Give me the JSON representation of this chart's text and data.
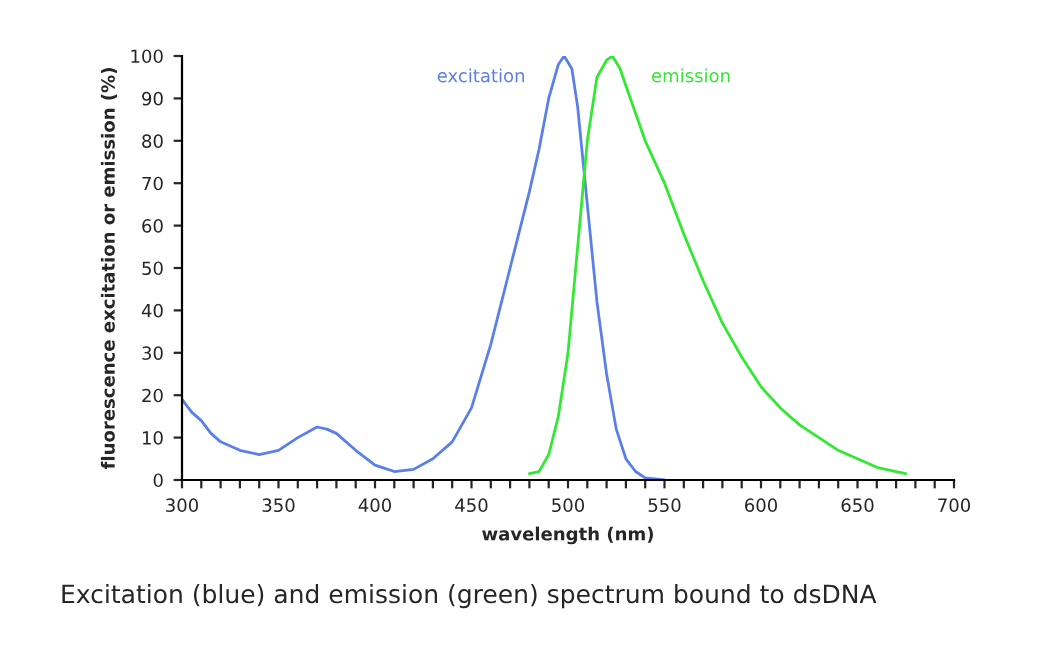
{
  "chart_data": {
    "type": "line",
    "xlabel": "wavelength (nm)",
    "ylabel": "fluorescence excitation or emission (%)",
    "xlim": [
      300,
      700
    ],
    "ylim": [
      0,
      100
    ],
    "xticks": [
      300,
      {
        "value": 310,
        "label": null
      },
      {
        "value": 320,
        "label": null
      },
      {
        "value": 330,
        "label": null
      },
      {
        "value": 340,
        "label": null
      },
      350,
      {
        "value": 360,
        "label": null
      },
      {
        "value": 370,
        "label": null
      },
      {
        "value": 380,
        "label": null
      },
      {
        "value": 390,
        "label": null
      },
      400,
      {
        "value": 410,
        "label": null
      },
      {
        "value": 420,
        "label": null
      },
      {
        "value": 430,
        "label": null
      },
      {
        "value": 440,
        "label": null
      },
      450,
      {
        "value": 460,
        "label": null
      },
      {
        "value": 470,
        "label": null
      },
      {
        "value": 480,
        "label": null
      },
      {
        "value": 490,
        "label": null
      },
      500,
      {
        "value": 510,
        "label": null
      },
      {
        "value": 520,
        "label": null
      },
      {
        "value": 530,
        "label": null
      },
      {
        "value": 540,
        "label": null
      },
      550,
      {
        "value": 560,
        "label": null
      },
      {
        "value": 570,
        "label": null
      },
      {
        "value": 580,
        "label": null
      },
      {
        "value": 590,
        "label": null
      },
      600,
      {
        "value": 610,
        "label": null
      },
      {
        "value": 620,
        "label": null
      },
      {
        "value": 630,
        "label": null
      },
      {
        "value": 640,
        "label": null
      },
      650,
      {
        "value": 660,
        "label": null
      },
      {
        "value": 670,
        "label": null
      },
      {
        "value": 680,
        "label": null
      },
      {
        "value": 690,
        "label": null
      },
      700
    ],
    "yticks": [
      0,
      10,
      20,
      30,
      40,
      50,
      60,
      70,
      80,
      90,
      100
    ],
    "grid": false,
    "legend": false,
    "marker": "none",
    "line_style": "solid",
    "series": [
      {
        "name": "excitation",
        "color": "#5b7fe8",
        "x": [
          300,
          305,
          310,
          315,
          320,
          330,
          340,
          350,
          360,
          370,
          375,
          380,
          390,
          400,
          410,
          420,
          430,
          440,
          450,
          460,
          470,
          480,
          485,
          490,
          495,
          498,
          502,
          505,
          510,
          515,
          520,
          525,
          530,
          535,
          540,
          550
        ],
        "values": [
          19,
          16,
          14,
          11,
          9,
          7,
          6,
          7,
          10,
          12.5,
          12,
          11,
          7,
          3.5,
          2,
          2.5,
          5,
          9,
          17,
          32,
          50,
          68,
          78,
          90,
          98,
          100,
          97,
          88,
          65,
          42,
          25,
          12,
          5,
          2,
          0.5,
          0
        ]
      },
      {
        "name": "emission",
        "color": "#33e833",
        "x": [
          480,
          485,
          490,
          495,
          500,
          505,
          510,
          515,
          520,
          523,
          527,
          530,
          540,
          550,
          560,
          570,
          580,
          590,
          600,
          610,
          620,
          630,
          640,
          650,
          660,
          670,
          675
        ],
        "values": [
          1.5,
          2,
          6,
          15,
          30,
          55,
          80,
          95,
          99,
          100,
          97,
          93,
          80,
          70,
          58,
          47,
          37,
          29,
          22,
          17,
          13,
          10,
          7,
          5,
          3,
          2,
          1.5
        ]
      }
    ],
    "annotations": [
      "Excitation (blue) and emission (green) spectrum bound to dsDNA"
    ]
  }
}
